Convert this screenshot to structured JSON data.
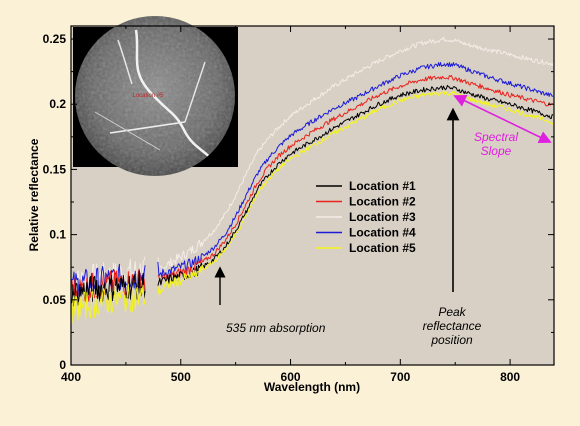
{
  "chart_data": {
    "type": "line",
    "xlabel": "Wavelength (nm)",
    "ylabel": "Relative reflectance",
    "xlim": [
      400,
      840
    ],
    "ylim": [
      0,
      0.26
    ],
    "xticks": [
      400,
      500,
      600,
      700,
      800
    ],
    "xtick_labels": [
      "400",
      "500",
      "600",
      "700",
      "800"
    ],
    "yticks": [
      0,
      0.05,
      0.1,
      0.15,
      0.2,
      0.25
    ],
    "ytick_labels": [
      "0",
      "0.05",
      "0.1",
      "0.15",
      "0.2",
      "0.25"
    ],
    "gap": [
      468,
      479
    ],
    "grid": false,
    "plot_background": "#d8d0c5",
    "legend_position": "center-right",
    "series": [
      {
        "name": "Location #1",
        "color": "#000000",
        "x": [
          400,
          420,
          440,
          460,
          468,
          479,
          490,
          500,
          510,
          520,
          530,
          540,
          550,
          560,
          570,
          580,
          590,
          600,
          620,
          640,
          660,
          680,
          700,
          720,
          740,
          750,
          760,
          780,
          800,
          820,
          840
        ],
        "values": [
          0.055,
          0.058,
          0.06,
          0.061,
          0.062,
          0.062,
          0.066,
          0.068,
          0.07,
          0.075,
          0.081,
          0.09,
          0.103,
          0.118,
          0.135,
          0.146,
          0.155,
          0.162,
          0.172,
          0.182,
          0.191,
          0.2,
          0.207,
          0.211,
          0.213,
          0.212,
          0.209,
          0.204,
          0.2,
          0.195,
          0.19
        ]
      },
      {
        "name": "Location #2",
        "color": "#e8231d",
        "x": [
          400,
          420,
          440,
          460,
          468,
          479,
          490,
          500,
          510,
          520,
          530,
          540,
          550,
          560,
          570,
          580,
          590,
          600,
          620,
          640,
          660,
          680,
          700,
          720,
          740,
          750,
          760,
          780,
          800,
          820,
          840
        ],
        "values": [
          0.057,
          0.06,
          0.062,
          0.064,
          0.064,
          0.064,
          0.068,
          0.071,
          0.074,
          0.079,
          0.085,
          0.095,
          0.108,
          0.124,
          0.14,
          0.152,
          0.161,
          0.168,
          0.179,
          0.189,
          0.198,
          0.207,
          0.214,
          0.219,
          0.221,
          0.22,
          0.217,
          0.212,
          0.207,
          0.203,
          0.199
        ]
      },
      {
        "name": "Location #3",
        "color": "#f4ece6",
        "x": [
          400,
          420,
          440,
          460,
          468,
          479,
          490,
          500,
          510,
          520,
          530,
          540,
          550,
          560,
          570,
          580,
          590,
          600,
          620,
          640,
          660,
          680,
          700,
          720,
          740,
          750,
          760,
          780,
          800,
          820,
          840
        ],
        "values": [
          0.063,
          0.067,
          0.069,
          0.072,
          0.073,
          0.073,
          0.078,
          0.083,
          0.088,
          0.095,
          0.103,
          0.115,
          0.13,
          0.147,
          0.163,
          0.174,
          0.183,
          0.191,
          0.203,
          0.214,
          0.224,
          0.233,
          0.241,
          0.247,
          0.25,
          0.249,
          0.246,
          0.242,
          0.238,
          0.234,
          0.231
        ]
      },
      {
        "name": "Location #4",
        "color": "#1b1bd8",
        "x": [
          400,
          420,
          440,
          460,
          468,
          479,
          490,
          500,
          510,
          520,
          530,
          540,
          550,
          560,
          570,
          580,
          590,
          600,
          620,
          640,
          660,
          680,
          700,
          720,
          740,
          750,
          760,
          780,
          800,
          820,
          840
        ],
        "values": [
          0.061,
          0.064,
          0.066,
          0.068,
          0.069,
          0.069,
          0.072,
          0.075,
          0.078,
          0.083,
          0.09,
          0.1,
          0.114,
          0.131,
          0.147,
          0.159,
          0.168,
          0.176,
          0.187,
          0.197,
          0.205,
          0.214,
          0.222,
          0.228,
          0.231,
          0.23,
          0.227,
          0.221,
          0.216,
          0.211,
          0.206
        ]
      },
      {
        "name": "Location #5",
        "color": "#f5f51a",
        "x": [
          400,
          420,
          440,
          460,
          468,
          479,
          490,
          500,
          510,
          520,
          530,
          540,
          550,
          560,
          570,
          580,
          590,
          600,
          620,
          640,
          660,
          680,
          700,
          720,
          740,
          750,
          760,
          780,
          800,
          820,
          840
        ],
        "values": [
          0.043,
          0.047,
          0.05,
          0.052,
          0.053,
          0.056,
          0.062,
          0.065,
          0.068,
          0.073,
          0.079,
          0.088,
          0.1,
          0.115,
          0.132,
          0.143,
          0.151,
          0.158,
          0.168,
          0.178,
          0.187,
          0.196,
          0.203,
          0.207,
          0.209,
          0.208,
          0.205,
          0.2,
          0.196,
          0.191,
          0.186
        ]
      }
    ],
    "annotations": [
      {
        "text": "535 nm absorption",
        "x": 535,
        "y": 0.073,
        "color": "#000000"
      },
      {
        "text": "Peak",
        "x": 750,
        "y": 0.212,
        "color": "#000000"
      },
      {
        "text": "reflectance",
        "x": 750,
        "y": 0.212,
        "color": "#000000"
      },
      {
        "text": "position",
        "x": 750,
        "y": 0.212,
        "color": "#000000"
      },
      {
        "text": "Spectral",
        "x": 755,
        "y": 0.214,
        "color": "#e020e0"
      },
      {
        "text": "Slope",
        "x": 755,
        "y": 0.214,
        "color": "#e020e0"
      }
    ],
    "inset": {
      "type": "micrograph",
      "label": "Location #5",
      "crack_color": "#f2f2f2",
      "label_color": "#c0282a"
    }
  }
}
